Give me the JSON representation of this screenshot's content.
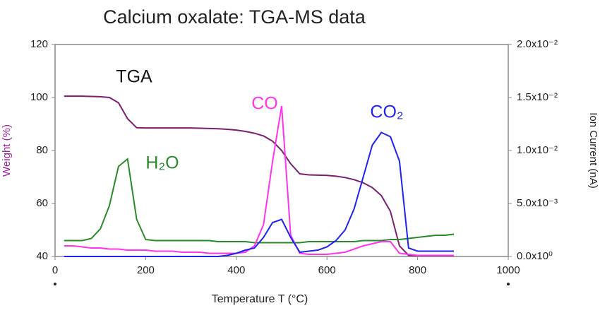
{
  "chart_data": {
    "type": "line",
    "title": "Calcium oxalate: TGA-MS data",
    "x_label": "Temperature T (°C)",
    "y_label": "Weight (%)",
    "y2_label": "Ion Current (nA)",
    "xlim": [
      0,
      1000
    ],
    "xticks": [
      0,
      200,
      400,
      600,
      800,
      1000
    ],
    "ylim": [
      40,
      120
    ],
    "yticks": [
      40,
      60,
      80,
      100,
      120
    ],
    "y2lim": [
      0,
      0.02
    ],
    "y2ticks": [
      {
        "value": 0,
        "label": "0.0x10⁰"
      },
      {
        "value": 0.005,
        "label": "5.0x10⁻³"
      },
      {
        "value": 0.01,
        "label": "1.0x10⁻²"
      },
      {
        "value": 0.015,
        "label": "1.5x10⁻²"
      },
      {
        "value": 0.02,
        "label": "2.0x10⁻²"
      }
    ],
    "x": [
      20,
      40,
      60,
      80,
      100,
      120,
      140,
      160,
      180,
      200,
      220,
      240,
      260,
      280,
      300,
      320,
      340,
      360,
      380,
      400,
      420,
      440,
      460,
      480,
      500,
      520,
      540,
      560,
      580,
      600,
      620,
      640,
      660,
      680,
      700,
      720,
      740,
      760,
      780,
      800,
      820,
      840,
      860,
      880
    ],
    "series": [
      {
        "name": "TGA",
        "color": "#7a1f72",
        "axis": "y",
        "values": [
          100.5,
          100.5,
          100.5,
          100.4,
          100.3,
          100,
          98,
          92,
          88.6,
          88.5,
          88.5,
          88.5,
          88.5,
          88.5,
          88.5,
          88.4,
          88.3,
          88.2,
          88,
          87.7,
          87.2,
          86.5,
          85.5,
          83.5,
          80,
          75,
          71.2,
          70.8,
          70.7,
          70.6,
          70.3,
          69.8,
          69,
          67.8,
          66,
          63,
          57,
          44,
          40.4,
          40.3,
          40.3,
          40.3,
          40.3,
          40.3
        ]
      },
      {
        "name": "H₂O",
        "color": "#2a8a2a",
        "axis": "y2",
        "values": [
          0.0015,
          0.0015,
          0.0015,
          0.0017,
          0.0026,
          0.0048,
          0.0085,
          0.0092,
          0.0035,
          0.0016,
          0.0015,
          0.0015,
          0.0015,
          0.0015,
          0.0015,
          0.0015,
          0.0015,
          0.0014,
          0.0014,
          0.0014,
          0.0014,
          0.0013,
          0.0013,
          0.0013,
          0.0013,
          0.0013,
          0.0013,
          0.0014,
          0.0014,
          0.0014,
          0.0014,
          0.0014,
          0.0014,
          0.0015,
          0.0015,
          0.0015,
          0.0016,
          0.0016,
          0.0017,
          0.0018,
          0.0019,
          0.002,
          0.002,
          0.0021
        ]
      },
      {
        "name": "CO",
        "color": "#ff33ee",
        "axis": "y2",
        "values": [
          0.001,
          0.001,
          0.0009,
          0.0008,
          0.0008,
          0.0007,
          0.0007,
          0.0006,
          0.0006,
          0.0006,
          0.0005,
          0.0005,
          0.0005,
          0.0004,
          0.0004,
          0.0004,
          0.0003,
          0.0003,
          0.0003,
          0.0003,
          0.0004,
          0.001,
          0.003,
          0.009,
          0.0142,
          0.002,
          0.0003,
          0.0002,
          0.0002,
          0.0002,
          0.0003,
          0.0004,
          0.0007,
          0.001,
          0.0012,
          0.0014,
          0.0014,
          0.0003,
          0.0002,
          0.0001,
          0.0001,
          0.0001,
          0.0001,
          0.0001
        ]
      },
      {
        "name": "CO₂",
        "color": "#2222ee",
        "axis": "y2",
        "values": [
          0,
          0,
          0,
          0,
          0,
          0,
          0,
          0,
          0,
          0,
          0,
          0,
          0,
          0,
          0,
          0,
          0,
          0,
          0.0001,
          0.0003,
          0.0006,
          0.0008,
          0.0018,
          0.0032,
          0.0035,
          0.0018,
          0.0004,
          0.0005,
          0.0006,
          0.0009,
          0.0015,
          0.0025,
          0.0045,
          0.0075,
          0.0105,
          0.0117,
          0.0113,
          0.009,
          0.0008,
          0.0005,
          0.0005,
          0.0005,
          0.0005,
          0.0005
        ]
      }
    ]
  }
}
